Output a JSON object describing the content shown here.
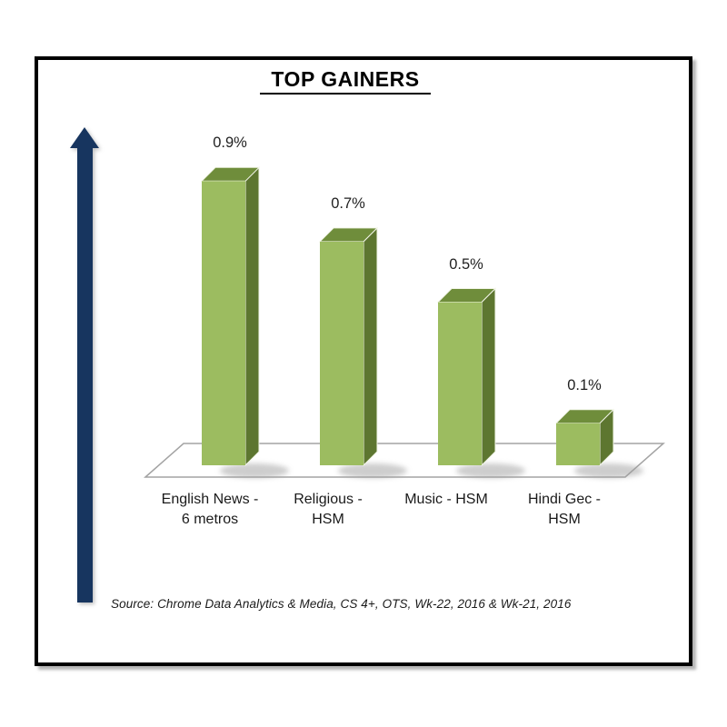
{
  "header": {
    "title": "TOP GAINERS"
  },
  "chart_data": {
    "type": "bar",
    "style": "3d-column",
    "title": "TOP GAINERS",
    "categories": [
      "English News - 6 metros",
      "Religious - HSM",
      "Music - HSM",
      "Hindi Gec - HSM"
    ],
    "category_lines": [
      [
        "English News -",
        "6 metros"
      ],
      [
        "Religious -",
        "HSM"
      ],
      [
        "Music - HSM",
        ""
      ],
      [
        "Hindi Gec -",
        "HSM"
      ]
    ],
    "values": [
      0.9,
      0.7,
      0.5,
      0.1
    ],
    "value_labels": [
      "0.9%",
      "0.7%",
      "0.5%",
      "0.1%"
    ],
    "unit": "%",
    "ylim": [
      0,
      1.0
    ],
    "grid": false,
    "legend": false,
    "xlabel": "",
    "ylabel": ""
  },
  "annotations": {
    "trend_arrow_direction": "up"
  },
  "source_note": "Source: Chrome Data Analytics & Media, CS 4+, OTS, Wk-22, 2016 & Wk-21, 2016",
  "colors": {
    "bar_front": "#9cbc60",
    "bar_top": "#6f8d3b",
    "bar_side": "#5d7630",
    "face_edge": "#f2f5e8",
    "arrow": "#17355f",
    "frame_border": "#000000",
    "floor_border": "#a3a3a3",
    "shadow": "#9c9c9c",
    "text": "#1a1a1a"
  }
}
